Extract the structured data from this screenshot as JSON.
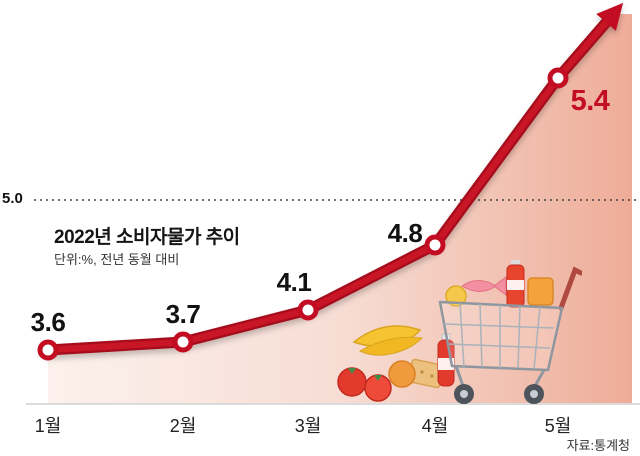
{
  "chart_data": {
    "type": "line",
    "title": "2022년 소비자물가 추이",
    "subtitle": "단위:%, 전년 동월 대비",
    "categories": [
      "1월",
      "2월",
      "3월",
      "4월",
      "5월"
    ],
    "values": [
      3.6,
      3.7,
      4.1,
      4.8,
      5.4
    ],
    "reference_line": {
      "value": 5.0,
      "label": "5.0"
    },
    "source": "자료:통계청",
    "ylim": [
      3.4,
      5.6
    ],
    "xlabel": "",
    "ylabel": "",
    "grid": false,
    "legend": "none",
    "line_color": "#c30d23",
    "highlight_last_color": "#c30d23",
    "area_color_light": "#fbece6",
    "area_color_deep": "#eda globals",
    "trend": "rising-arrow"
  },
  "icons": [
    "trend-arrow-icon",
    "shopping-cart-icon",
    "bananas-icon",
    "tomatoes-icon",
    "orange-icon",
    "soda-bottle-icon",
    "cracker-icon",
    "fish-icon",
    "milk-bottle-icon",
    "snack-pack-icon"
  ]
}
